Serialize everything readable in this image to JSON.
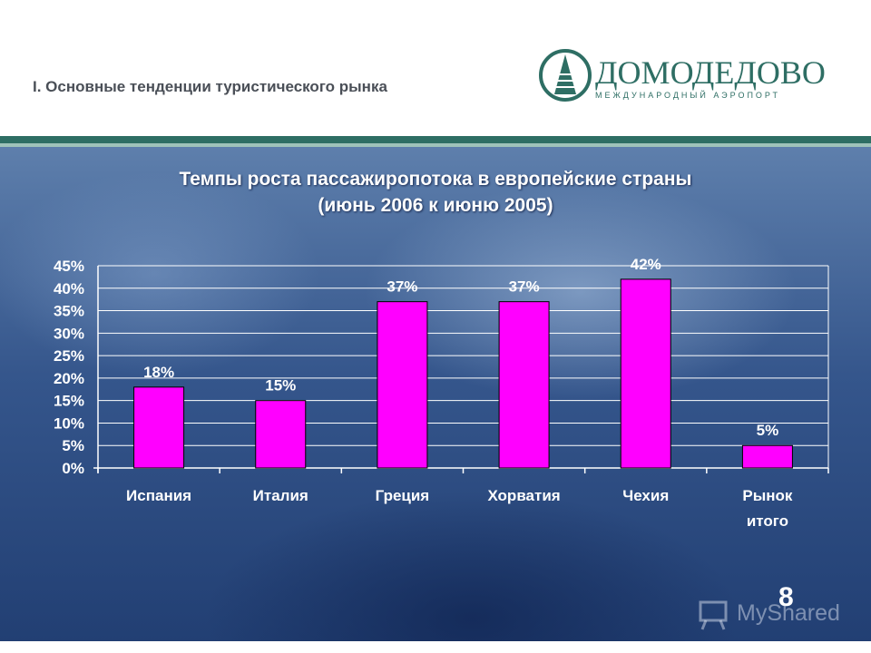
{
  "header": {
    "section_title": "I. Основные тенденции туристического рынка",
    "logo_name": "ДОМОДЕДОВО",
    "logo_subtitle": "МЕЖДУНАРОДНЫЙ АЭРОПОРТ"
  },
  "slide": {
    "title_line1": "Темпы роста пассажиропотока в европейские страны",
    "title_line2": "(июнь 2006 к июню 2005)",
    "page_number": "8",
    "watermark": "MyShared"
  },
  "colors": {
    "bar": "#ff00ff",
    "brand": "#2e6e64",
    "gridline": "#ffffff",
    "text": "#ffffff"
  },
  "chart_data": {
    "type": "bar",
    "categories": [
      "Испания",
      "Италия",
      "Греция",
      "Хорватия",
      "Чехия",
      "Рынок итого"
    ],
    "category_lines": [
      [
        "Испания"
      ],
      [
        "Италия"
      ],
      [
        "Греция"
      ],
      [
        "Хорватия"
      ],
      [
        "Чехия"
      ],
      [
        "Рынок",
        "итого"
      ]
    ],
    "values": [
      18,
      15,
      37,
      37,
      42,
      5
    ],
    "data_labels": [
      "18%",
      "15%",
      "37%",
      "37%",
      "42%",
      "5%"
    ],
    "ylim": [
      0,
      45
    ],
    "yticks": [
      0,
      5,
      10,
      15,
      20,
      25,
      30,
      35,
      40,
      45
    ],
    "ytick_labels": [
      "0%",
      "5%",
      "10%",
      "15%",
      "20%",
      "25%",
      "30%",
      "35%",
      "40%",
      "45%"
    ],
    "grid": true,
    "legend": false
  }
}
